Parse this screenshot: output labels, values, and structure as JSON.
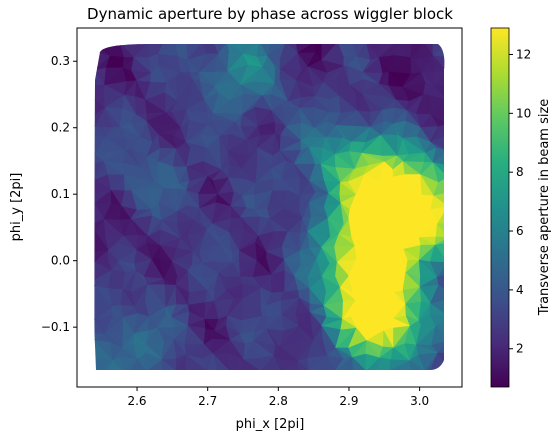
{
  "chart_data": {
    "type": "heatmap",
    "subtype": "tricontourf-triangulation",
    "title": "Dynamic aperture by phase across wiggler block",
    "xlabel": "phi_x [2pi]",
    "ylabel": "phi_y [2pi]",
    "colorbar_label": "Transverse aperture in beam size",
    "colormap": "viridis",
    "xlim": [
      2.515,
      3.06
    ],
    "ylim": [
      -0.19,
      0.35
    ],
    "clim": [
      0.7,
      12.9
    ],
    "x_ticks": [
      2.6,
      2.7,
      2.8,
      2.9,
      3.0
    ],
    "x_tick_labels": [
      "2.6",
      "2.7",
      "2.8",
      "2.9",
      "3.0"
    ],
    "y_ticks": [
      -0.1,
      0.0,
      0.1,
      0.2,
      0.3
    ],
    "y_tick_labels": [
      "−0.1",
      "0.0",
      "0.1",
      "0.2",
      "0.3"
    ],
    "colorbar_ticks": [
      2,
      4,
      6,
      8,
      10,
      12
    ],
    "colorbar_tick_labels": [
      "2",
      "4",
      "6",
      "8",
      "10",
      "12"
    ],
    "data_extent": {
      "x": [
        2.54,
        3.04
      ],
      "y": [
        -0.165,
        0.33
      ]
    },
    "grid": false,
    "legend": "none",
    "hotspots": [
      {
        "x": 2.93,
        "y": -0.04,
        "value": 12.5
      },
      {
        "x": 2.95,
        "y": -0.1,
        "value": 12.0
      },
      {
        "x": 2.96,
        "y": 0.08,
        "value": 10.5
      },
      {
        "x": 3.03,
        "y": 0.05,
        "value": 9.5
      },
      {
        "x": 2.9,
        "y": 0.15,
        "value": 8.0
      },
      {
        "x": 2.98,
        "y": 0.12,
        "value": 8.5
      },
      {
        "x": 2.92,
        "y": 0.03,
        "value": 10.0
      },
      {
        "x": 2.75,
        "y": 0.29,
        "value": 6.5
      },
      {
        "x": 2.58,
        "y": -0.13,
        "value": 5.5
      },
      {
        "x": 2.6,
        "y": 0.12,
        "value": 4.5
      }
    ],
    "coldspots": [
      {
        "x": 2.55,
        "y": 0.05,
        "value": 1.0
      },
      {
        "x": 3.0,
        "y": 0.26,
        "value": 1.2
      },
      {
        "x": 2.84,
        "y": 0.32,
        "value": 1.5
      },
      {
        "x": 2.56,
        "y": 0.28,
        "value": 2.0
      }
    ]
  }
}
